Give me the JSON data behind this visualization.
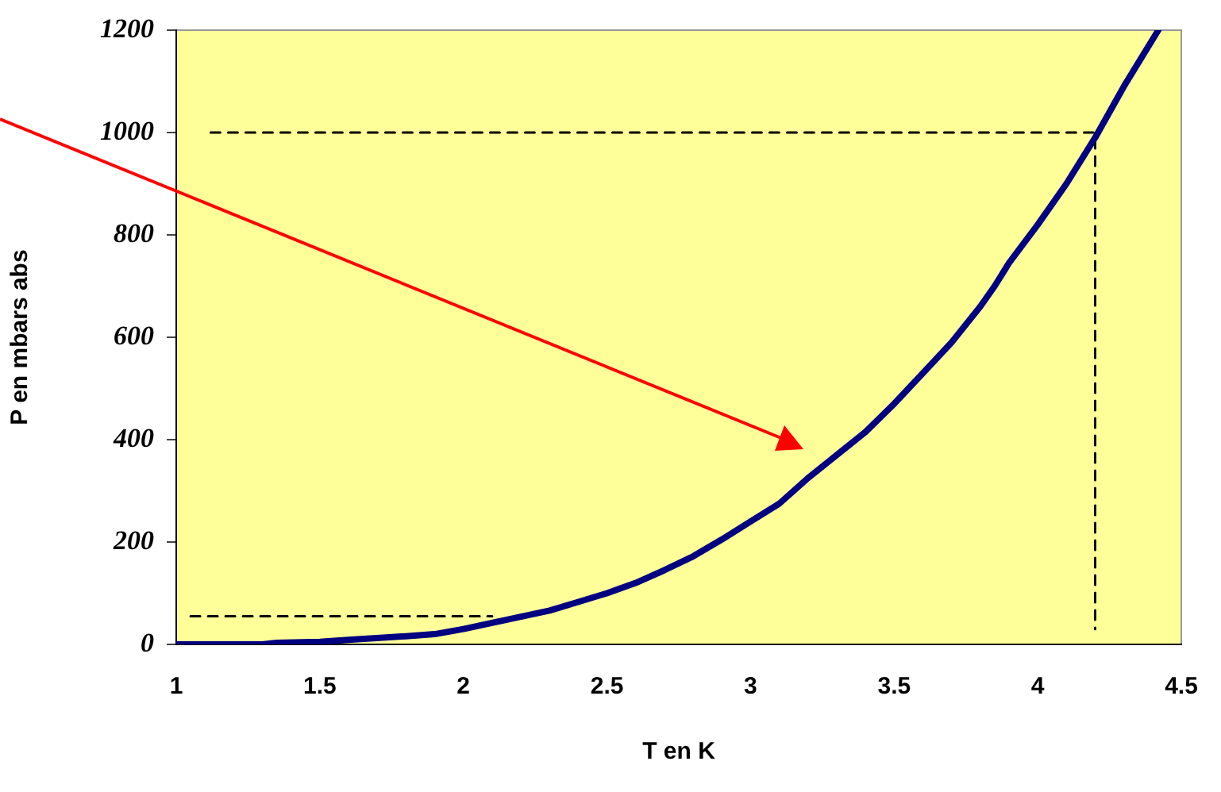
{
  "chart_data": {
    "type": "line",
    "xlabel": "T en K",
    "ylabel": "P en mbars abs",
    "xlim": [
      1,
      4.5
    ],
    "ylim": [
      0,
      1200
    ],
    "xticks": [
      1,
      1.5,
      2,
      2.5,
      3,
      3.5,
      4,
      4.5
    ],
    "yticks": [
      0,
      200,
      400,
      600,
      800,
      1000,
      1200
    ],
    "grid": false,
    "legend": false,
    "marker": "none",
    "series": [
      {
        "color": "#000080",
        "line_style": "solid",
        "x": [
          1.0,
          1.3,
          1.35,
          1.5,
          1.6,
          1.8,
          1.9,
          2.0,
          2.1,
          2.2,
          2.3,
          2.4,
          2.5,
          2.6,
          2.7,
          2.8,
          2.9,
          3.0,
          3.1,
          3.2,
          3.3,
          3.4,
          3.5,
          3.6,
          3.7,
          3.8,
          3.85,
          3.9,
          4.0,
          4.1,
          4.2,
          4.3,
          4.42
        ],
        "values": [
          0,
          0,
          3,
          5,
          9,
          16,
          20,
          30,
          42,
          54,
          66,
          83,
          100,
          120,
          145,
          172,
          205,
          240,
          275,
          325,
          370,
          415,
          470,
          530,
          590,
          660,
          700,
          745,
          820,
          900,
          990,
          1090,
          1200
        ]
      },
      {
        "color": "#000000",
        "line_style": "dashed",
        "x": [
          1.12,
          4.2,
          4.2
        ],
        "values": [
          1000,
          1000,
          30
        ]
      },
      {
        "color": "#000000",
        "line_style": "dashed",
        "x": [
          1.05,
          2.1
        ],
        "values": [
          55,
          55
        ]
      }
    ]
  }
}
